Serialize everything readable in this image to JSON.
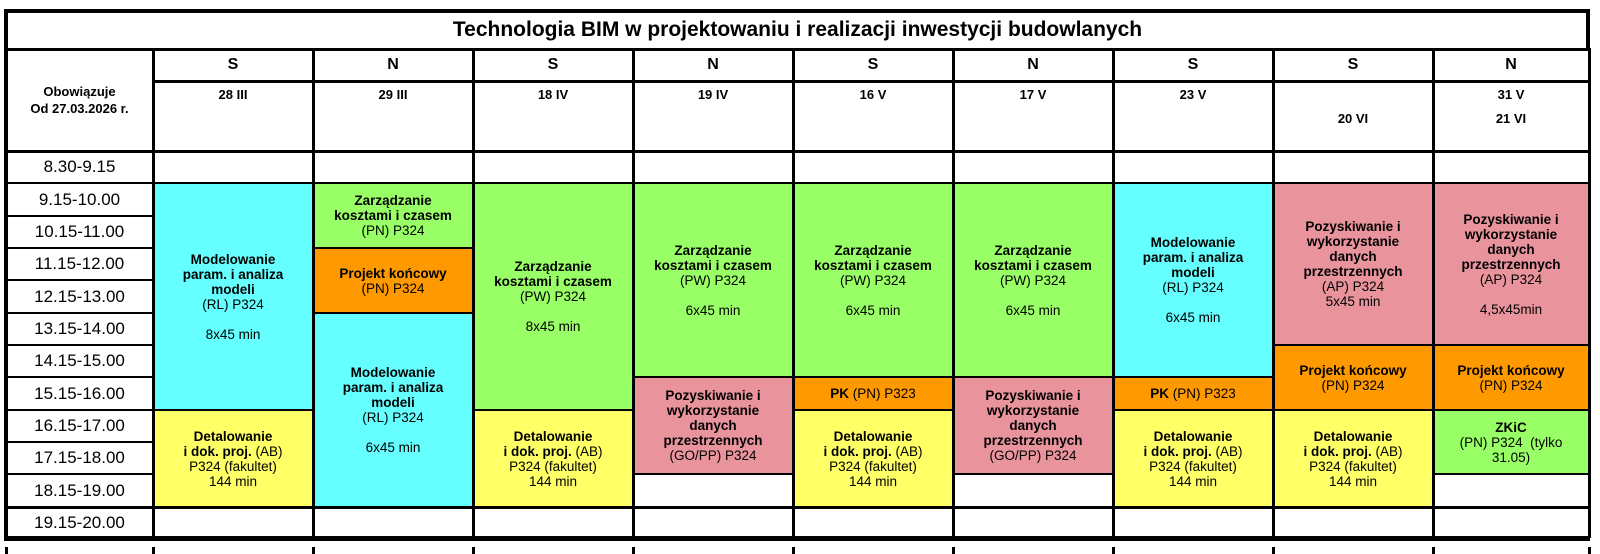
{
  "title": "Technologia BIM w projektowaniu i realizacji inwestycji budowlanych",
  "effective": {
    "line1": "Obowiązuje",
    "line2": "Od 27.03.2026 r."
  },
  "columns": [
    {
      "day": "S",
      "date1": "28 III",
      "date2": ""
    },
    {
      "day": "N",
      "date1": "29 III",
      "date2": ""
    },
    {
      "day": "S",
      "date1": "18 IV",
      "date2": ""
    },
    {
      "day": "N",
      "date1": "19 IV",
      "date2": ""
    },
    {
      "day": "S",
      "date1": "16 V",
      "date2": ""
    },
    {
      "day": "N",
      "date1": "17 V",
      "date2": ""
    },
    {
      "day": "S",
      "date1": "23 V",
      "date2": ""
    },
    {
      "day": "S",
      "date1": "",
      "date2": "20 VI"
    },
    {
      "day": "N",
      "date1": "31 V",
      "date2": "21 VI"
    }
  ],
  "time_slots": [
    "8.30-9.15",
    "9.15-10.00",
    "10.15-11.00",
    "11.15-12.00",
    "12.15-13.00",
    "13.15-14.00",
    "14.15-15.00",
    "15.15-16.00",
    "16.15-17.00",
    "17.15-18.00",
    "18.15-19.00",
    "19.15-20.00"
  ],
  "colors": {
    "cyan": "#66FFFF",
    "green": "#99FF66",
    "orange": "#FF9900",
    "yellow": "#FFFF66",
    "pink": "#E9939D"
  },
  "blocks": [
    {
      "col": 0,
      "row": 1,
      "span": 7,
      "color": "cyan",
      "lines": [
        [
          {
            "t": "Modelowanie",
            "b": true
          }
        ],
        [
          {
            "t": "param. i analiza",
            "b": true
          }
        ],
        [
          {
            "t": "modeli",
            "b": true
          }
        ],
        [
          {
            "t": "(RL) P324",
            "b": false
          }
        ],
        [],
        [
          {
            "t": "8x45 min",
            "b": false
          }
        ]
      ]
    },
    {
      "col": 0,
      "row": 8,
      "span": 3,
      "color": "yellow",
      "lines": [
        [
          {
            "t": "Detalowanie",
            "b": true
          }
        ],
        [
          {
            "t": "i dok. proj.",
            "b": true
          },
          {
            "t": " (AB)",
            "b": false
          }
        ],
        [
          {
            "t": "P324 (fakultet)",
            "b": false
          }
        ],
        [
          {
            "t": "144 min",
            "b": false
          }
        ]
      ]
    },
    {
      "col": 1,
      "row": 1,
      "span": 2,
      "color": "green",
      "lines": [
        [
          {
            "t": "Zarządzanie",
            "b": true
          }
        ],
        [
          {
            "t": "kosztami i czasem",
            "b": true
          }
        ],
        [
          {
            "t": "(PN) P324",
            "b": false
          }
        ]
      ]
    },
    {
      "col": 1,
      "row": 3,
      "span": 2,
      "color": "orange",
      "lines": [
        [
          {
            "t": "Projekt końcowy",
            "b": true
          }
        ],
        [
          {
            "t": "(PN) P324",
            "b": false
          }
        ]
      ]
    },
    {
      "col": 1,
      "row": 5,
      "span": 6,
      "color": "cyan",
      "lines": [
        [
          {
            "t": "Modelowanie",
            "b": true
          }
        ],
        [
          {
            "t": "param. i analiza",
            "b": true
          }
        ],
        [
          {
            "t": "modeli",
            "b": true
          }
        ],
        [
          {
            "t": "(RL) P324",
            "b": false
          }
        ],
        [],
        [
          {
            "t": "6x45 min",
            "b": false
          }
        ]
      ]
    },
    {
      "col": 2,
      "row": 1,
      "span": 7,
      "color": "green",
      "lines": [
        [
          {
            "t": "Zarządzanie",
            "b": true
          }
        ],
        [
          {
            "t": "kosztami i czasem",
            "b": true
          }
        ],
        [
          {
            "t": "(PW) P324",
            "b": false
          }
        ],
        [],
        [
          {
            "t": "8x45 min",
            "b": false
          }
        ]
      ]
    },
    {
      "col": 2,
      "row": 8,
      "span": 3,
      "color": "yellow",
      "lines": [
        [
          {
            "t": "Detalowanie",
            "b": true
          }
        ],
        [
          {
            "t": "i dok. proj.",
            "b": true
          },
          {
            "t": " (AB)",
            "b": false
          }
        ],
        [
          {
            "t": "P324 (fakultet)",
            "b": false
          }
        ],
        [
          {
            "t": "144 min",
            "b": false
          }
        ]
      ]
    },
    {
      "col": 3,
      "row": 1,
      "span": 6,
      "color": "green",
      "lines": [
        [
          {
            "t": "Zarządzanie",
            "b": true
          }
        ],
        [
          {
            "t": "kosztami i czasem",
            "b": true
          }
        ],
        [
          {
            "t": "(PW) P324",
            "b": false
          }
        ],
        [],
        [
          {
            "t": "6x45 min",
            "b": false
          }
        ]
      ]
    },
    {
      "col": 3,
      "row": 7,
      "span": 3,
      "color": "pink",
      "lines": [
        [
          {
            "t": "Pozyskiwanie i",
            "b": true
          }
        ],
        [
          {
            "t": "wykorzystanie",
            "b": true
          }
        ],
        [
          {
            "t": "danych",
            "b": true
          }
        ],
        [
          {
            "t": "przestrzennych",
            "b": true
          }
        ],
        [
          {
            "t": "(GO/PP) P324",
            "b": false
          }
        ]
      ]
    },
    {
      "col": 4,
      "row": 1,
      "span": 6,
      "color": "green",
      "lines": [
        [
          {
            "t": "Zarządzanie",
            "b": true
          }
        ],
        [
          {
            "t": "kosztami i czasem",
            "b": true
          }
        ],
        [
          {
            "t": "(PW) P324",
            "b": false
          }
        ],
        [],
        [
          {
            "t": "6x45 min",
            "b": false
          }
        ]
      ]
    },
    {
      "col": 4,
      "row": 7,
      "span": 1,
      "color": "orange",
      "lines": [
        [
          {
            "t": "PK",
            "b": true
          },
          {
            "t": " (PN) P323",
            "b": false
          }
        ]
      ]
    },
    {
      "col": 4,
      "row": 8,
      "span": 3,
      "color": "yellow",
      "lines": [
        [
          {
            "t": "Detalowanie",
            "b": true
          }
        ],
        [
          {
            "t": "i dok. proj.",
            "b": true
          },
          {
            "t": " (AB)",
            "b": false
          }
        ],
        [
          {
            "t": "P324 (fakultet)",
            "b": false
          }
        ],
        [
          {
            "t": "144 min",
            "b": false
          }
        ]
      ]
    },
    {
      "col": 5,
      "row": 1,
      "span": 6,
      "color": "green",
      "lines": [
        [
          {
            "t": "Zarządzanie",
            "b": true
          }
        ],
        [
          {
            "t": "kosztami i czasem",
            "b": true
          }
        ],
        [
          {
            "t": "(PW) P324",
            "b": false
          }
        ],
        [],
        [
          {
            "t": "6x45 min",
            "b": false
          }
        ]
      ]
    },
    {
      "col": 5,
      "row": 7,
      "span": 3,
      "color": "pink",
      "lines": [
        [
          {
            "t": "Pozyskiwanie i",
            "b": true
          }
        ],
        [
          {
            "t": "wykorzystanie",
            "b": true
          }
        ],
        [
          {
            "t": "danych",
            "b": true
          }
        ],
        [
          {
            "t": "przestrzennych",
            "b": true
          }
        ],
        [
          {
            "t": "(GO/PP) P324",
            "b": false
          }
        ]
      ]
    },
    {
      "col": 6,
      "row": 1,
      "span": 6,
      "color": "cyan",
      "lines": [
        [
          {
            "t": "Modelowanie",
            "b": true
          }
        ],
        [
          {
            "t": "param. i analiza",
            "b": true
          }
        ],
        [
          {
            "t": "modeli",
            "b": true
          }
        ],
        [
          {
            "t": "(RL) P324",
            "b": false
          }
        ],
        [],
        [
          {
            "t": "6x45 min",
            "b": false
          }
        ]
      ]
    },
    {
      "col": 6,
      "row": 7,
      "span": 1,
      "color": "orange",
      "lines": [
        [
          {
            "t": "PK",
            "b": true
          },
          {
            "t": " (PN) P323",
            "b": false
          }
        ]
      ]
    },
    {
      "col": 6,
      "row": 8,
      "span": 3,
      "color": "yellow",
      "lines": [
        [
          {
            "t": "Detalowanie",
            "b": true
          }
        ],
        [
          {
            "t": "i dok. proj.",
            "b": true
          },
          {
            "t": " (AB)",
            "b": false
          }
        ],
        [
          {
            "t": "P324 (fakultet)",
            "b": false
          }
        ],
        [
          {
            "t": "144 min",
            "b": false
          }
        ]
      ]
    },
    {
      "col": 7,
      "row": 1,
      "span": 5,
      "color": "pink",
      "lines": [
        [
          {
            "t": "Pozyskiwanie i",
            "b": true
          }
        ],
        [
          {
            "t": "wykorzystanie",
            "b": true
          }
        ],
        [
          {
            "t": "danych",
            "b": true
          }
        ],
        [
          {
            "t": "przestrzennych",
            "b": true
          }
        ],
        [
          {
            "t": "(AP) P324",
            "b": false
          }
        ],
        [
          {
            "t": "5x45 min",
            "b": false
          }
        ]
      ]
    },
    {
      "col": 7,
      "row": 6,
      "span": 2,
      "color": "orange",
      "lines": [
        [
          {
            "t": "Projekt końcowy",
            "b": true
          }
        ],
        [
          {
            "t": "(PN) P324",
            "b": false
          }
        ]
      ]
    },
    {
      "col": 7,
      "row": 8,
      "span": 3,
      "color": "yellow",
      "lines": [
        [
          {
            "t": "Detalowanie",
            "b": true
          }
        ],
        [
          {
            "t": "i dok. proj.",
            "b": true
          },
          {
            "t": " (AB)",
            "b": false
          }
        ],
        [
          {
            "t": "P324 (fakultet)",
            "b": false
          }
        ],
        [
          {
            "t": "144 min",
            "b": false
          }
        ]
      ]
    },
    {
      "col": 8,
      "row": 1,
      "span": 5,
      "color": "pink",
      "lines": [
        [
          {
            "t": "Pozyskiwanie i",
            "b": true
          }
        ],
        [
          {
            "t": "wykorzystanie",
            "b": true
          }
        ],
        [
          {
            "t": "danych",
            "b": true
          }
        ],
        [
          {
            "t": "przestrzennych",
            "b": true
          }
        ],
        [
          {
            "t": "(AP) P324",
            "b": false
          }
        ],
        [],
        [
          {
            "t": "4,5x45min",
            "b": false
          }
        ]
      ]
    },
    {
      "col": 8,
      "row": 6,
      "span": 2,
      "color": "orange",
      "lines": [
        [
          {
            "t": "Projekt końcowy",
            "b": true
          }
        ],
        [
          {
            "t": "(PN) P324",
            "b": false
          }
        ]
      ]
    },
    {
      "col": 8,
      "row": 8,
      "span": 2,
      "color": "green",
      "lines": [
        [
          {
            "t": "ZKiC",
            "b": true
          }
        ],
        [
          {
            "t": "(PN) P324  (tylko",
            "b": false
          }
        ],
        [
          {
            "t": "31.05)",
            "b": false
          }
        ]
      ]
    }
  ]
}
